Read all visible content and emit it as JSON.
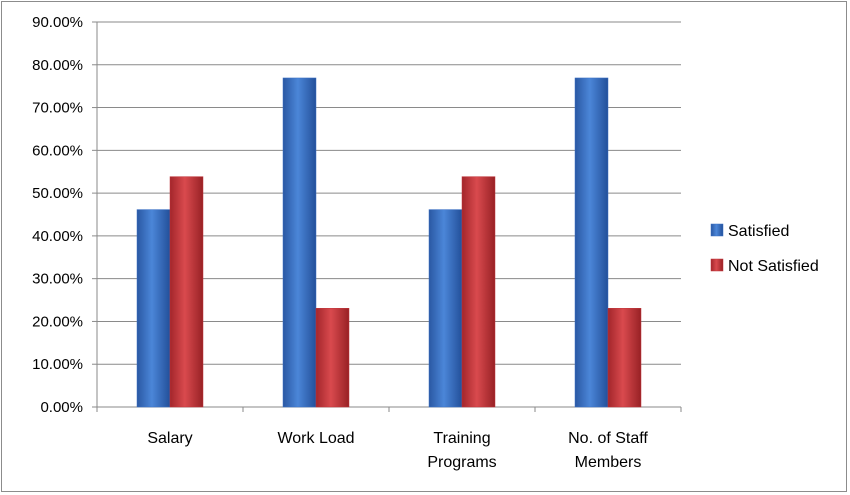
{
  "chart_data": {
    "type": "bar",
    "categories": [
      "Salary",
      "Work Load",
      "Training Programs",
      "No. of Staff Members"
    ],
    "category_lines": [
      [
        "Salary"
      ],
      [
        "Work Load"
      ],
      [
        "Training",
        "Programs"
      ],
      [
        "No. of Staff",
        "Members"
      ]
    ],
    "series": [
      {
        "name": "Satisfied",
        "values": [
          46.15,
          76.92,
          46.15,
          76.92
        ],
        "color": "#3b70c4"
      },
      {
        "name": "Not Satisfied",
        "values": [
          53.85,
          23.08,
          53.85,
          23.08
        ],
        "color": "#c0353a"
      }
    ],
    "yticks": [
      "0.00%",
      "10.00%",
      "20.00%",
      "30.00%",
      "40.00%",
      "50.00%",
      "60.00%",
      "70.00%",
      "80.00%",
      "90.00%"
    ],
    "ylim": [
      0,
      90
    ],
    "grid": true,
    "legend_position": "right"
  }
}
